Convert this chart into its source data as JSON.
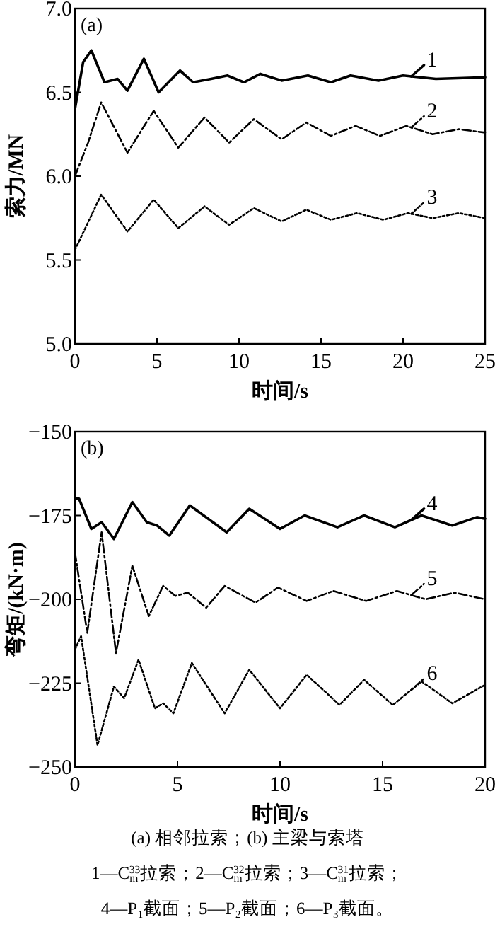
{
  "chart_data": [
    {
      "type": "line",
      "xlabel": "时间/s",
      "ylabel": "索力/MN",
      "annotations": [
        "(a)"
      ],
      "xlim": [
        0,
        25
      ],
      "ylim": [
        5,
        7
      ],
      "xticks": [
        0,
        5,
        10,
        15,
        20,
        25
      ],
      "yticks": [
        {
          "value": 5,
          "label": "5.0"
        },
        {
          "value": 5.5,
          "label": "5.5"
        },
        {
          "value": 6,
          "label": "6.0"
        },
        {
          "value": 6.5,
          "label": "6.5"
        },
        {
          "value": 7,
          "label": "7.0"
        }
      ],
      "grid": false,
      "legend": "right",
      "series": [
        {
          "name": "1",
          "color": "#000000",
          "line_style": "solid",
          "x": [
            0,
            0.5,
            1,
            1.8,
            2.6,
            3.2,
            4.2,
            5.1,
            6.4,
            7.2,
            8.3,
            9.3,
            10.3,
            11.3,
            12.6,
            14.2,
            15.6,
            16.8,
            18.5,
            20,
            22,
            25
          ],
          "values": [
            6.4,
            6.68,
            6.75,
            6.56,
            6.58,
            6.51,
            6.7,
            6.5,
            6.63,
            6.56,
            6.58,
            6.6,
            6.56,
            6.61,
            6.57,
            6.6,
            6.56,
            6.6,
            6.57,
            6.6,
            6.58,
            6.59
          ]
        },
        {
          "name": "2",
          "color": "#000000",
          "line_style": "dashed",
          "x": [
            0,
            0.8,
            1.6,
            3.2,
            4.8,
            6.3,
            7.9,
            9.4,
            10.9,
            12.6,
            14.1,
            15.6,
            17.1,
            18.6,
            20.2,
            21.8,
            23.4,
            25
          ],
          "values": [
            6.0,
            6.2,
            6.44,
            6.14,
            6.39,
            6.17,
            6.35,
            6.2,
            6.34,
            6.22,
            6.32,
            6.24,
            6.3,
            6.24,
            6.3,
            6.25,
            6.28,
            6.26
          ]
        },
        {
          "name": "3",
          "color": "#000000",
          "line_style": "dotted",
          "x": [
            0,
            1.6,
            3.2,
            4.8,
            6.3,
            7.9,
            9.4,
            10.9,
            12.6,
            14.1,
            15.6,
            17.2,
            18.8,
            20.3,
            21.8,
            23.4,
            25
          ],
          "values": [
            5.56,
            5.89,
            5.67,
            5.86,
            5.69,
            5.82,
            5.71,
            5.81,
            5.73,
            5.8,
            5.74,
            5.78,
            5.74,
            5.78,
            5.75,
            5.78,
            5.75
          ]
        }
      ]
    },
    {
      "type": "line",
      "xlabel": "时间/s",
      "ylabel": "弯矩/(kN·m)",
      "annotations": [
        "(b)",
        "(a) 相邻拉索；(b) 主梁与索塔",
        "1—C$_{m}$$^{33}$拉索；2—C$_{m}$$^{32}$拉索；3—C$_{m}$$^{31}$拉索；",
        "4—P₁截面；5—P₂截面；6—P₃截面。"
      ],
      "xlim": [
        0,
        20
      ],
      "ylim": [
        -250,
        -150
      ],
      "xticks": [
        0,
        5,
        10,
        15,
        20
      ],
      "yticks": [
        {
          "value": -250,
          "label": "−250"
        },
        {
          "value": -225,
          "label": "−225"
        },
        {
          "value": -200,
          "label": "−200"
        },
        {
          "value": -175,
          "label": "−175"
        },
        {
          "value": -150,
          "label": "−150"
        }
      ],
      "grid": false,
      "legend": "right",
      "series": [
        {
          "name": "4",
          "color": "#000000",
          "line_style": "solid",
          "x": [
            0,
            0.2,
            0.8,
            1.3,
            1.9,
            2.8,
            3.5,
            4,
            4.6,
            5.6,
            7.4,
            8.5,
            10,
            11.2,
            12.8,
            14.1,
            15.6,
            16.9,
            18.4,
            19.6,
            20
          ],
          "values": [
            -170,
            -170,
            -179,
            -177,
            -182,
            -171,
            -177,
            -178,
            -181,
            -172,
            -180,
            -173,
            -179,
            -175,
            -178.5,
            -175,
            -178.5,
            -175,
            -178,
            -175.5,
            -176
          ]
        },
        {
          "name": "5",
          "color": "#000000",
          "line_style": "dashed",
          "x": [
            0,
            0.6,
            1.3,
            2.0,
            2.8,
            3.6,
            4.3,
            4.9,
            5.5,
            6.4,
            7.3,
            8.8,
            9.9,
            11.3,
            12.6,
            14.2,
            15.7,
            17.1,
            18.5,
            20
          ],
          "values": [
            -186,
            -210,
            -180,
            -216,
            -190,
            -205,
            -196,
            -199,
            -198,
            -202.5,
            -196,
            -201,
            -196.5,
            -200.5,
            -197.5,
            -200.5,
            -197.5,
            -200,
            -198,
            -200
          ]
        },
        {
          "name": "6",
          "color": "#000000",
          "line_style": "dotted",
          "x": [
            0,
            0.3,
            1.1,
            1.9,
            2.4,
            3.1,
            3.9,
            4.3,
            4.8,
            5.7,
            7.3,
            8.5,
            10,
            11.3,
            12.9,
            14.1,
            15.5,
            16.9,
            18.4,
            20
          ],
          "values": [
            -215,
            -211,
            -243.5,
            -226,
            -229.5,
            -218,
            -232.5,
            -231,
            -234,
            -219,
            -234,
            -221,
            -232.5,
            -222.5,
            -231.5,
            -224,
            -231.5,
            -224.5,
            -231,
            -225.5
          ]
        }
      ]
    }
  ]
}
